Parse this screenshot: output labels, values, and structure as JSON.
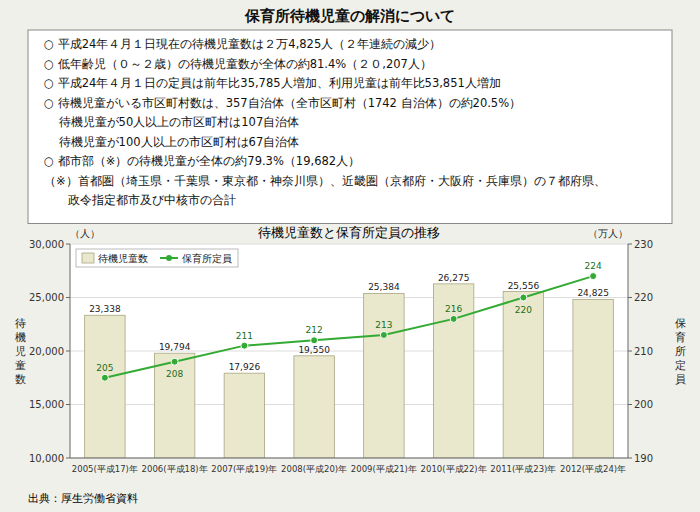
{
  "chart_data": {
    "type": "bar",
    "title": "保育所待機児童の解消について",
    "subtitle": "待機児童数と保育所定員の推移",
    "annotations": [
      "○ 平成24年４月１日現在の待機児童数は２万4,825人（２年連続の減少）",
      "○ 低年齢児（０～２歳）の待機児童数が全体の約81.4%（２０,207人）",
      "○ 平成24年４月１日の定員は前年比35,785人増加、利用児童は前年比53,851人増加",
      "○ 待機児童がいる市区町村数は、357自治体（全市区町村（1742 自治体）の約20.5%）",
      "    待機児童が50人以上の市区町村は107自治体",
      "    待機児童が100人以上の市区町村は67自治体",
      "○ 都市部（※）の待機児童が全体の約79.3%（19,682人）",
      "（※）首都圏（埼玉県・千葉県・東京都・神奈川県）、近畿圏（京都府・大阪府・兵庫県）の７都府県、",
      "　　政令指定都市及び中核市の合計"
    ],
    "source": "出典：厚生労働省資料",
    "y_label": "待\n機\n児\n童\n数",
    "y2_label": "保\n育\n所\n定\n員",
    "y_unit": "（人）",
    "y2_unit": "（万人）",
    "categories": [
      "2005(平成17)年",
      "2006(平成18)年",
      "2007(平成19)年",
      "2008(平成20)年",
      "2009(平成21)年",
      "2010(平成22)年",
      "2011(平成23)年",
      "2012(平成24)年"
    ],
    "series": [
      {
        "name": "待機児童数",
        "type": "bar",
        "color": "#eae8cc",
        "values": [
          23338,
          19794,
          17926,
          19550,
          25384,
          26275,
          25556,
          24825
        ],
        "value_labels": [
          "23,338",
          "19,794",
          "17,926",
          "19,550",
          "25,384",
          "26,275",
          "25,556",
          "24,825"
        ]
      },
      {
        "name": "保育所定員",
        "type": "line",
        "color": "#33aa33",
        "marker": "circle",
        "axis": "y2",
        "values": [
          205,
          208,
          211,
          212,
          213,
          216,
          220,
          224
        ]
      }
    ],
    "ylim": [
      10000,
      30000
    ],
    "yticks": [
      {
        "value": 10000,
        "label": "10,000"
      },
      {
        "value": 15000,
        "label": "15,000"
      },
      {
        "value": 20000,
        "label": "20,000"
      },
      {
        "value": 25000,
        "label": "25,000"
      },
      {
        "value": 30000,
        "label": "30,000"
      }
    ],
    "y2lim": [
      190,
      230
    ],
    "y2ticks": [
      190,
      200,
      210,
      220,
      230
    ],
    "grid": true,
    "legend": "upper left",
    "data_labels": true
  }
}
